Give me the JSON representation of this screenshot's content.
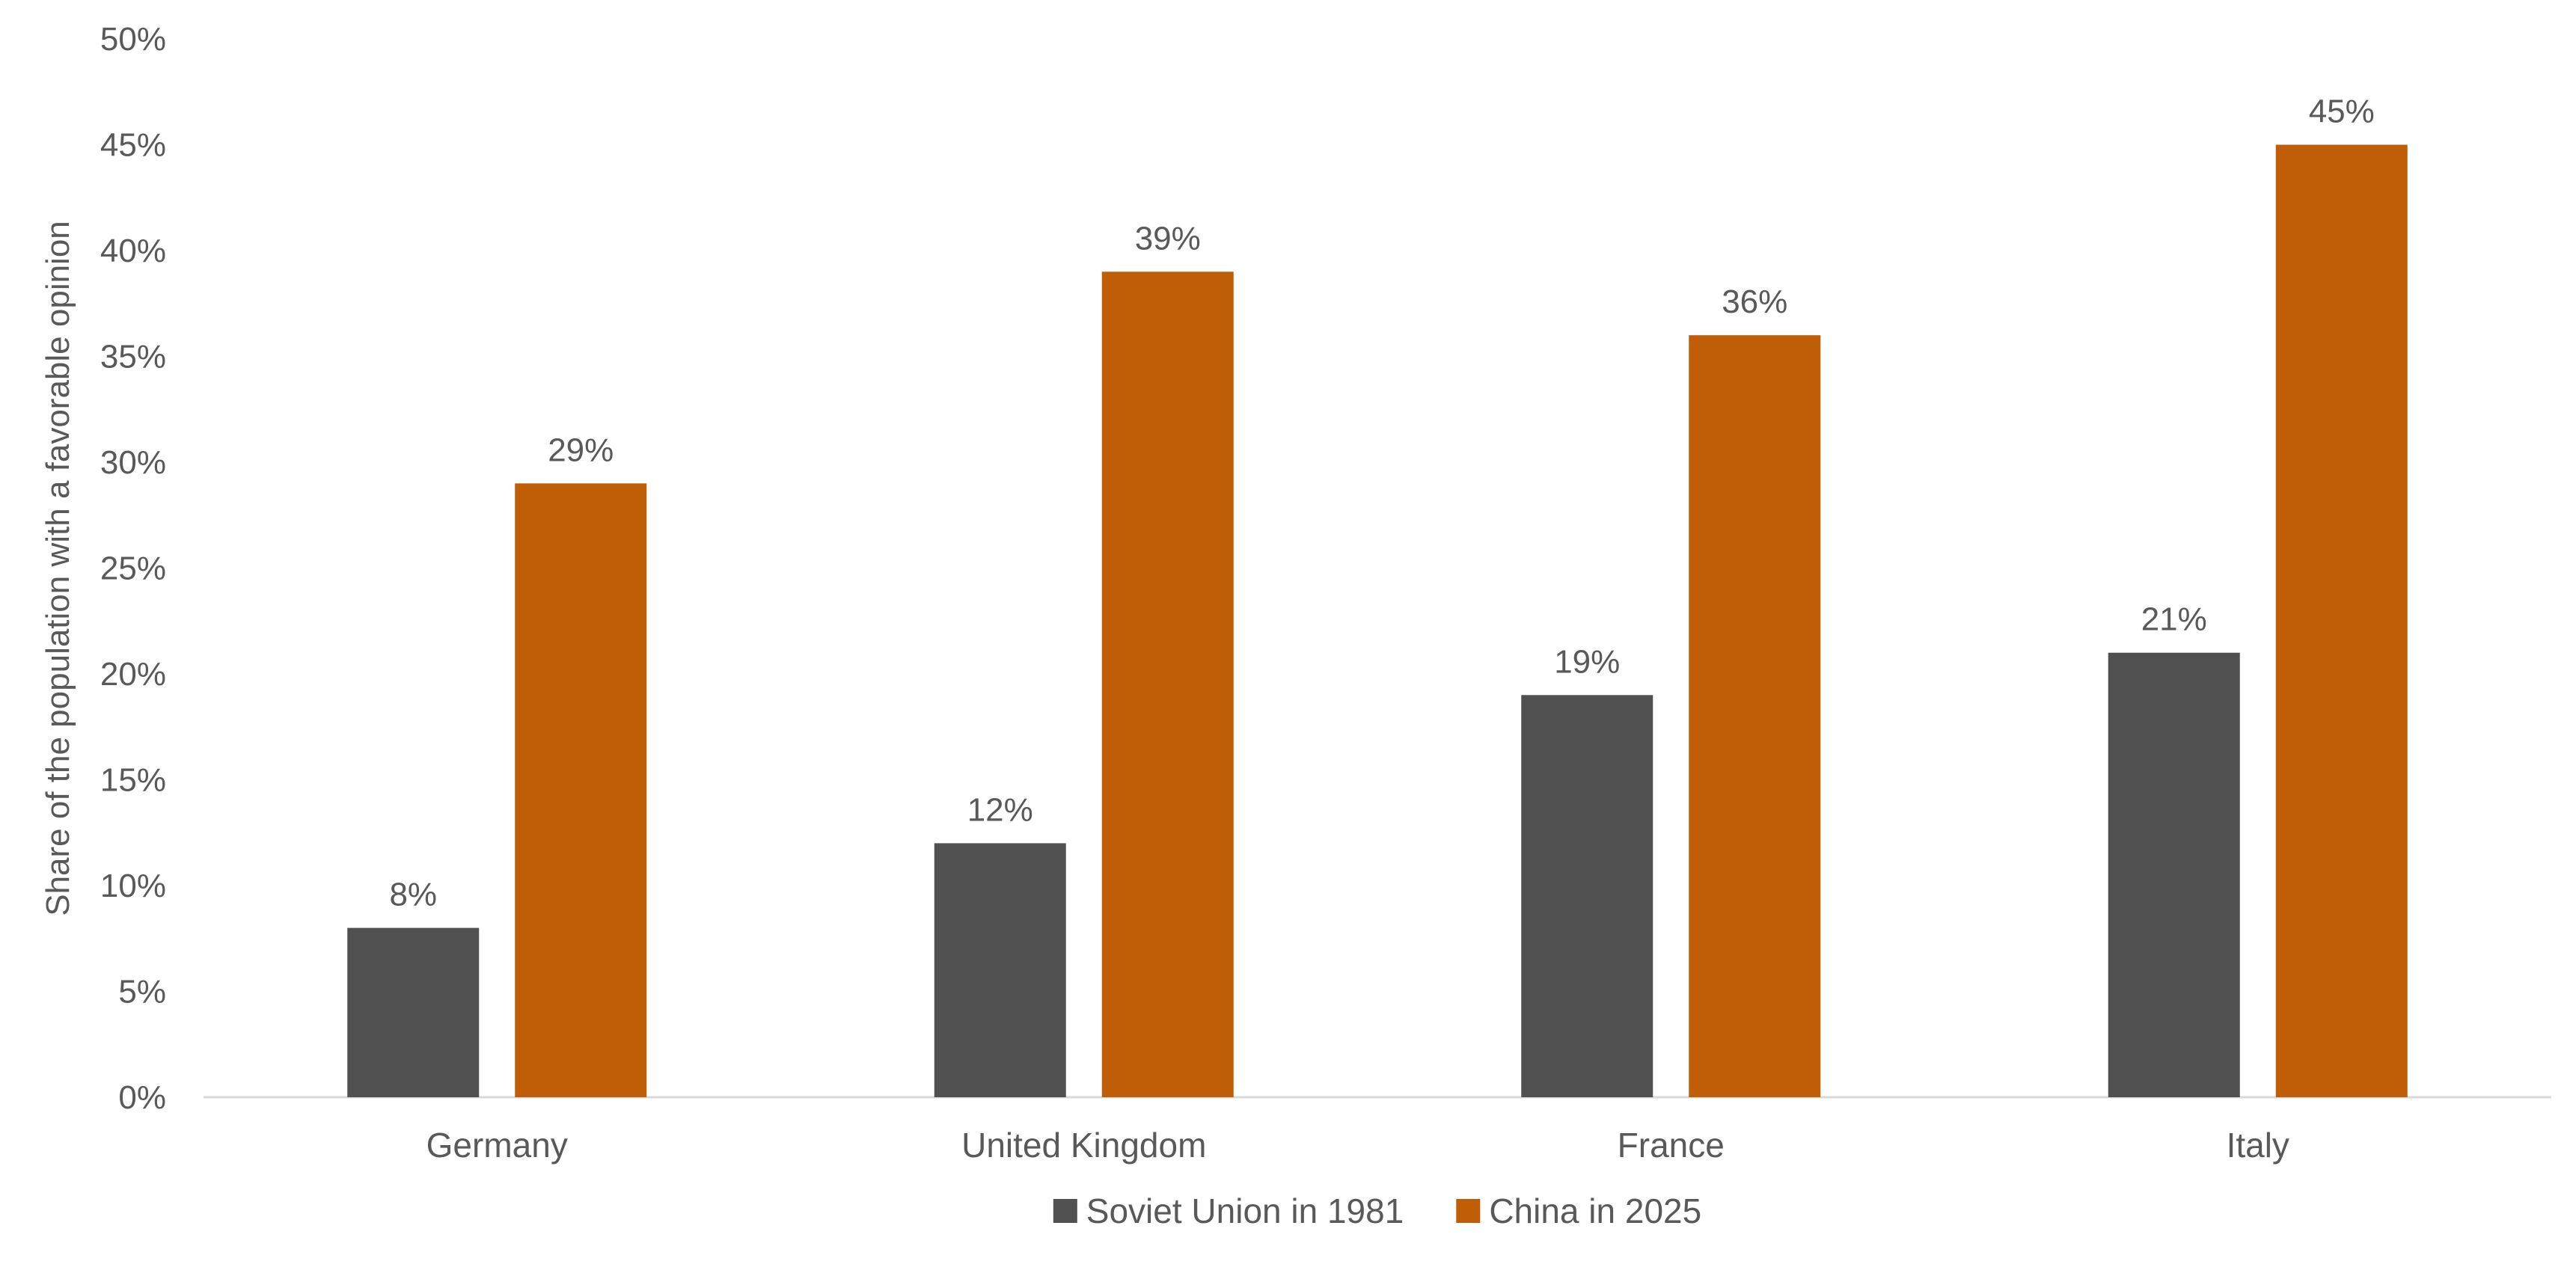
{
  "chart_data": {
    "type": "bar",
    "title": "",
    "xlabel": "",
    "ylabel": "Share of the population with a favorable opinion",
    "categories": [
      "Germany",
      "United Kingdom",
      "France",
      "Italy"
    ],
    "series": [
      {
        "name": "Soviet Union in 1981",
        "color": "#505050",
        "values": [
          8,
          12,
          19,
          21
        ],
        "labels": [
          "8%",
          "12%",
          "19%",
          "21%"
        ]
      },
      {
        "name": "China in 2025",
        "color": "#BF5E07",
        "values": [
          29,
          39,
          36,
          45
        ],
        "labels": [
          "29%",
          "39%",
          "36%",
          "45%"
        ]
      }
    ],
    "ylim": [
      0,
      50
    ],
    "yticks": [
      0,
      5,
      10,
      15,
      20,
      25,
      30,
      35,
      40,
      45,
      50
    ],
    "ytick_labels": [
      "0%",
      "5%",
      "10%",
      "15%",
      "20%",
      "25%",
      "30%",
      "35%",
      "40%",
      "45%",
      "50%"
    ],
    "grid": false,
    "legend_position": "bottom-center"
  }
}
